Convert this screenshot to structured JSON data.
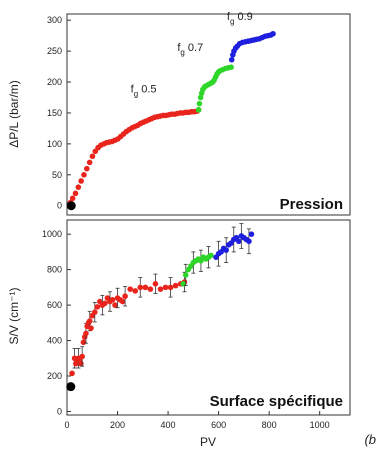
{
  "panel_tag": "(b",
  "chart_data": [
    {
      "type": "scatter",
      "title": "Pression",
      "xlabel": "",
      "ylabel": "ΔP/L (bar/m)",
      "xlim": [
        0,
        1000
      ],
      "ylim": [
        -15,
        310
      ],
      "yticks": [
        0,
        50,
        100,
        150,
        200,
        250,
        300
      ],
      "grid": false,
      "annotations": [
        {
          "text": "f",
          "sub": "g",
          "value": " 0.5",
          "x": 225,
          "y": 183
        },
        {
          "text": "f",
          "sub": "g",
          "value": " 0.7",
          "x": 390,
          "y": 250
        },
        {
          "text": "f",
          "sub": "g",
          "value": " 0.9",
          "x": 565,
          "y": 300
        }
      ],
      "series": [
        {
          "color": "#e8241c",
          "points": [
            [
              12,
              5
            ],
            [
              20,
              12
            ],
            [
              30,
              20
            ],
            [
              40,
              30
            ],
            [
              50,
              40
            ],
            [
              60,
              50
            ],
            [
              70,
              60
            ],
            [
              80,
              70
            ],
            [
              90,
              80
            ],
            [
              100,
              88
            ],
            [
              110,
              94
            ],
            [
              120,
              98
            ],
            [
              130,
              100
            ],
            [
              140,
              102
            ],
            [
              150,
              103
            ],
            [
              160,
              104
            ],
            [
              170,
              106
            ],
            [
              180,
              108
            ],
            [
              190,
              112
            ],
            [
              200,
              116
            ],
            [
              210,
              120
            ],
            [
              220,
              123
            ],
            [
              230,
              126
            ],
            [
              240,
              128
            ],
            [
              250,
              130
            ],
            [
              260,
              133
            ],
            [
              270,
              135
            ],
            [
              280,
              137
            ],
            [
              290,
              139
            ],
            [
              300,
              141
            ],
            [
              310,
              143
            ],
            [
              320,
              144
            ],
            [
              330,
              145
            ],
            [
              340,
              146
            ],
            [
              350,
              146
            ],
            [
              360,
              147
            ],
            [
              370,
              148
            ],
            [
              380,
              148
            ],
            [
              390,
              149
            ],
            [
              400,
              150
            ],
            [
              410,
              150
            ],
            [
              420,
              151
            ],
            [
              430,
              151
            ],
            [
              440,
              152
            ],
            [
              450,
              152
            ],
            [
              460,
              153
            ],
            [
              465,
              155
            ]
          ]
        },
        {
          "color": "#2fd62a",
          "points": [
            [
              465,
              155
            ],
            [
              468,
              165
            ],
            [
              472,
              175
            ],
            [
              476,
              182
            ],
            [
              480,
              188
            ],
            [
              486,
              192
            ],
            [
              492,
              194
            ],
            [
              500,
              196
            ],
            [
              508,
              198
            ],
            [
              515,
              200
            ],
            [
              520,
              203
            ],
            [
              525,
              208
            ],
            [
              530,
              213
            ],
            [
              535,
              216
            ],
            [
              540,
              218
            ],
            [
              550,
              220
            ],
            [
              560,
              222
            ],
            [
              570,
              223
            ],
            [
              580,
              224
            ]
          ]
        },
        {
          "color": "#1f1fe0",
          "points": [
            [
              582,
              236
            ],
            [
              586,
              244
            ],
            [
              590,
              250
            ],
            [
              596,
              255
            ],
            [
              602,
              258
            ],
            [
              610,
              262
            ],
            [
              620,
              264
            ],
            [
              630,
              265
            ],
            [
              640,
              266
            ],
            [
              650,
              267
            ],
            [
              660,
              268
            ],
            [
              670,
              269
            ],
            [
              680,
              270
            ],
            [
              690,
              272
            ],
            [
              700,
              274
            ],
            [
              710,
              275
            ],
            [
              720,
              276
            ],
            [
              728,
              278
            ]
          ]
        },
        {
          "color": "#000000",
          "size": "large",
          "points": [
            [
              15,
              0
            ]
          ]
        }
      ]
    },
    {
      "type": "scatter",
      "title": "Surface spécifique",
      "xlabel": "PV",
      "ylabel": "S/V (cm⁻¹)",
      "xlim": [
        0,
        1120
      ],
      "ylim": [
        -20,
        1080
      ],
      "xticks": [
        0,
        200,
        400,
        600,
        800,
        1000
      ],
      "yticks": [
        0,
        200,
        400,
        600,
        800,
        1000
      ],
      "grid": false,
      "series": [
        {
          "color": "#e8241c",
          "error": 55,
          "points": [
            [
              20,
              215
            ],
            [
              30,
              300
            ],
            [
              35,
              270
            ],
            [
              40,
              280
            ],
            [
              45,
              300
            ],
            [
              50,
              290
            ],
            [
              55,
              270
            ],
            [
              60,
              310
            ],
            [
              65,
              390
            ],
            [
              70,
              420
            ],
            [
              75,
              440
            ],
            [
              80,
              480
            ],
            [
              85,
              500
            ],
            [
              90,
              510
            ],
            [
              95,
              470
            ],
            [
              100,
              540
            ],
            [
              110,
              560
            ],
            [
              120,
              590
            ],
            [
              130,
              620
            ],
            [
              140,
              600
            ],
            [
              150,
              610
            ],
            [
              160,
              640
            ],
            [
              170,
              620
            ],
            [
              180,
              630
            ],
            [
              190,
              600
            ],
            [
              200,
              640
            ],
            [
              210,
              630
            ],
            [
              220,
              620
            ],
            [
              230,
              650
            ],
            [
              250,
              690
            ],
            [
              270,
              680
            ],
            [
              290,
              700
            ],
            [
              310,
              700
            ],
            [
              330,
              690
            ],
            [
              350,
              720
            ],
            [
              370,
              690
            ],
            [
              390,
              700
            ],
            [
              410,
              700
            ],
            [
              430,
              710
            ],
            [
              450,
              720
            ],
            [
              465,
              730
            ]
          ]
        },
        {
          "color": "#2fd62a",
          "error": 60,
          "points": [
            [
              460,
              720
            ],
            [
              470,
              770
            ],
            [
              480,
              800
            ],
            [
              490,
              820
            ],
            [
              500,
              840
            ],
            [
              510,
              850
            ],
            [
              520,
              860
            ],
            [
              530,
              850
            ],
            [
              540,
              870
            ],
            [
              550,
              860
            ],
            [
              560,
              870
            ],
            [
              570,
              880
            ]
          ]
        },
        {
          "color": "#1f1fe0",
          "error": 70,
          "points": [
            [
              590,
              870
            ],
            [
              600,
              890
            ],
            [
              610,
              900
            ],
            [
              620,
              920
            ],
            [
              630,
              910
            ],
            [
              640,
              940
            ],
            [
              650,
              950
            ],
            [
              660,
              970
            ],
            [
              670,
              980
            ],
            [
              680,
              960
            ],
            [
              690,
              990
            ],
            [
              700,
              980
            ],
            [
              710,
              970
            ],
            [
              720,
              960
            ],
            [
              730,
              1000
            ]
          ]
        },
        {
          "color": "#000000",
          "size": "large",
          "points": [
            [
              15,
              140
            ]
          ]
        }
      ]
    }
  ]
}
